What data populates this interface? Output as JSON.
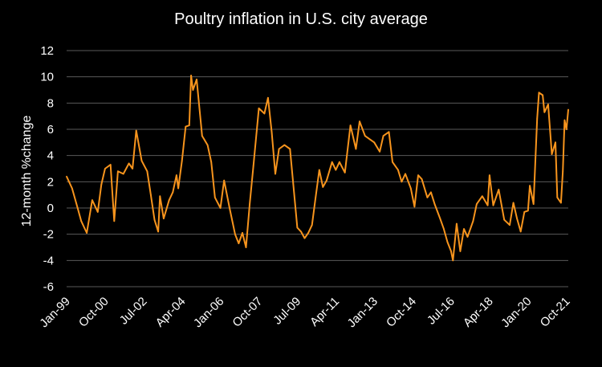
{
  "chart_data": {
    "type": "line",
    "title": "Poultry inflation in U.S. city average",
    "ylabel": "12-month %change",
    "xlabel": "",
    "ylim": [
      -6,
      12
    ],
    "yticks": [
      -6,
      -4,
      -2,
      0,
      2,
      4,
      6,
      8,
      10,
      12
    ],
    "grid": true,
    "line_color": "#F7941D",
    "x_tick_labels": [
      "Jan-99",
      "Oct-00",
      "Jul-02",
      "Apr-04",
      "Jan-06",
      "Oct-07",
      "Jul-09",
      "Apr-11",
      "Jan-13",
      "Oct-14",
      "Jul-16",
      "Apr-18",
      "Jan-20",
      "Oct-21"
    ],
    "series": [
      {
        "points": [
          [
            "Jan-99",
            2.4
          ],
          [
            "Apr-99",
            1.5
          ],
          [
            "Jul-99",
            0.0
          ],
          [
            "Sep-99",
            -1.0
          ],
          [
            "Dec-99",
            -1.9
          ],
          [
            "Mar-00",
            0.6
          ],
          [
            "Jun-00",
            -0.3
          ],
          [
            "Aug-00",
            1.8
          ],
          [
            "Oct-00",
            3.0
          ],
          [
            "Jan-01",
            3.3
          ],
          [
            "Mar-01",
            -1.0
          ],
          [
            "May-01",
            2.8
          ],
          [
            "Aug-01",
            2.6
          ],
          [
            "Nov-01",
            3.4
          ],
          [
            "Jan-02",
            3.0
          ],
          [
            "Mar-02",
            5.9
          ],
          [
            "Jun-02",
            3.6
          ],
          [
            "Sep-02",
            2.8
          ],
          [
            "Nov-02",
            1.0
          ],
          [
            "Jan-03",
            -0.9
          ],
          [
            "Mar-03",
            -1.8
          ],
          [
            "Apr-03",
            0.9
          ],
          [
            "Jun-03",
            -0.8
          ],
          [
            "Sep-03",
            0.6
          ],
          [
            "Nov-03",
            1.2
          ],
          [
            "Jan-04",
            2.5
          ],
          [
            "Feb-04",
            1.5
          ],
          [
            "Apr-04",
            3.6
          ],
          [
            "Jun-04",
            6.2
          ],
          [
            "Aug-04",
            6.3
          ],
          [
            "Sep-04",
            10.1
          ],
          [
            "Oct-04",
            9.0
          ],
          [
            "Dec-04",
            9.8
          ],
          [
            "Mar-05",
            5.5
          ],
          [
            "Jun-05",
            4.8
          ],
          [
            "Aug-05",
            3.5
          ],
          [
            "Oct-05",
            0.8
          ],
          [
            "Jan-06",
            0.0
          ],
          [
            "Mar-06",
            2.1
          ],
          [
            "Jun-06",
            0.0
          ],
          [
            "Sep-06",
            -2.0
          ],
          [
            "Nov-06",
            -2.7
          ],
          [
            "Jan-07",
            -1.9
          ],
          [
            "Mar-07",
            -3.0
          ],
          [
            "May-07",
            0.3
          ],
          [
            "Jul-07",
            3.2
          ],
          [
            "Oct-07",
            7.6
          ],
          [
            "Jan-08",
            7.2
          ],
          [
            "Mar-08",
            8.4
          ],
          [
            "May-08",
            5.8
          ],
          [
            "Jul-08",
            2.6
          ],
          [
            "Sep-08",
            4.5
          ],
          [
            "Dec-08",
            4.8
          ],
          [
            "Mar-09",
            4.5
          ],
          [
            "Jul-09",
            -1.5
          ],
          [
            "Sep-09",
            -1.8
          ],
          [
            "Nov-09",
            -2.3
          ],
          [
            "Jan-10",
            -1.9
          ],
          [
            "Mar-10",
            -1.3
          ],
          [
            "May-10",
            0.8
          ],
          [
            "Jul-10",
            2.9
          ],
          [
            "Sep-10",
            1.6
          ],
          [
            "Nov-10",
            2.1
          ],
          [
            "Feb-11",
            3.5
          ],
          [
            "Apr-11",
            2.9
          ],
          [
            "Jun-11",
            3.5
          ],
          [
            "Sep-11",
            2.7
          ],
          [
            "Dec-11",
            6.3
          ],
          [
            "Mar-12",
            4.5
          ],
          [
            "May-12",
            6.6
          ],
          [
            "Aug-12",
            5.5
          ],
          [
            "Nov-12",
            5.2
          ],
          [
            "Jan-13",
            5.0
          ],
          [
            "Apr-13",
            4.3
          ],
          [
            "Jun-13",
            5.5
          ],
          [
            "Sep-13",
            5.8
          ],
          [
            "Nov-13",
            3.5
          ],
          [
            "Feb-14",
            2.9
          ],
          [
            "Apr-14",
            2.0
          ],
          [
            "Jun-14",
            2.6
          ],
          [
            "Sep-14",
            1.5
          ],
          [
            "Nov-14",
            0.1
          ],
          [
            "Jan-15",
            2.5
          ],
          [
            "Mar-15",
            2.2
          ],
          [
            "Jun-15",
            0.8
          ],
          [
            "Aug-15",
            1.2
          ],
          [
            "Oct-15",
            0.3
          ],
          [
            "Jan-16",
            -0.8
          ],
          [
            "Mar-16",
            -1.6
          ],
          [
            "May-16",
            -2.6
          ],
          [
            "Jul-16",
            -3.3
          ],
          [
            "Aug-16",
            -4.0
          ],
          [
            "Oct-16",
            -1.2
          ],
          [
            "Dec-16",
            -3.3
          ],
          [
            "Feb-17",
            -1.6
          ],
          [
            "Apr-17",
            -2.2
          ],
          [
            "Jul-17",
            -1.0
          ],
          [
            "Sep-17",
            0.3
          ],
          [
            "Dec-17",
            0.9
          ],
          [
            "Mar-18",
            0.2
          ],
          [
            "Apr-18",
            2.5
          ],
          [
            "Jun-18",
            0.2
          ],
          [
            "Sep-18",
            1.4
          ],
          [
            "Dec-18",
            -0.9
          ],
          [
            "Mar-19",
            -1.3
          ],
          [
            "May-19",
            0.4
          ],
          [
            "Jul-19",
            -0.8
          ],
          [
            "Sep-19",
            -1.8
          ],
          [
            "Nov-19",
            -0.3
          ],
          [
            "Jan-20",
            -0.2
          ],
          [
            "Feb-20",
            1.7
          ],
          [
            "Apr-20",
            0.3
          ],
          [
            "Jun-20",
            6.8
          ],
          [
            "Jul-20",
            8.8
          ],
          [
            "Sep-20",
            8.6
          ],
          [
            "Oct-20",
            7.3
          ],
          [
            "Dec-20",
            7.9
          ],
          [
            "Feb-21",
            4.1
          ],
          [
            "Apr-21",
            5.0
          ],
          [
            "May-21",
            0.8
          ],
          [
            "Jul-21",
            0.4
          ],
          [
            "Aug-21",
            2.8
          ],
          [
            "Sep-21",
            6.7
          ],
          [
            "Oct-21",
            6.0
          ],
          [
            "Nov-21",
            7.5
          ]
        ]
      }
    ]
  }
}
